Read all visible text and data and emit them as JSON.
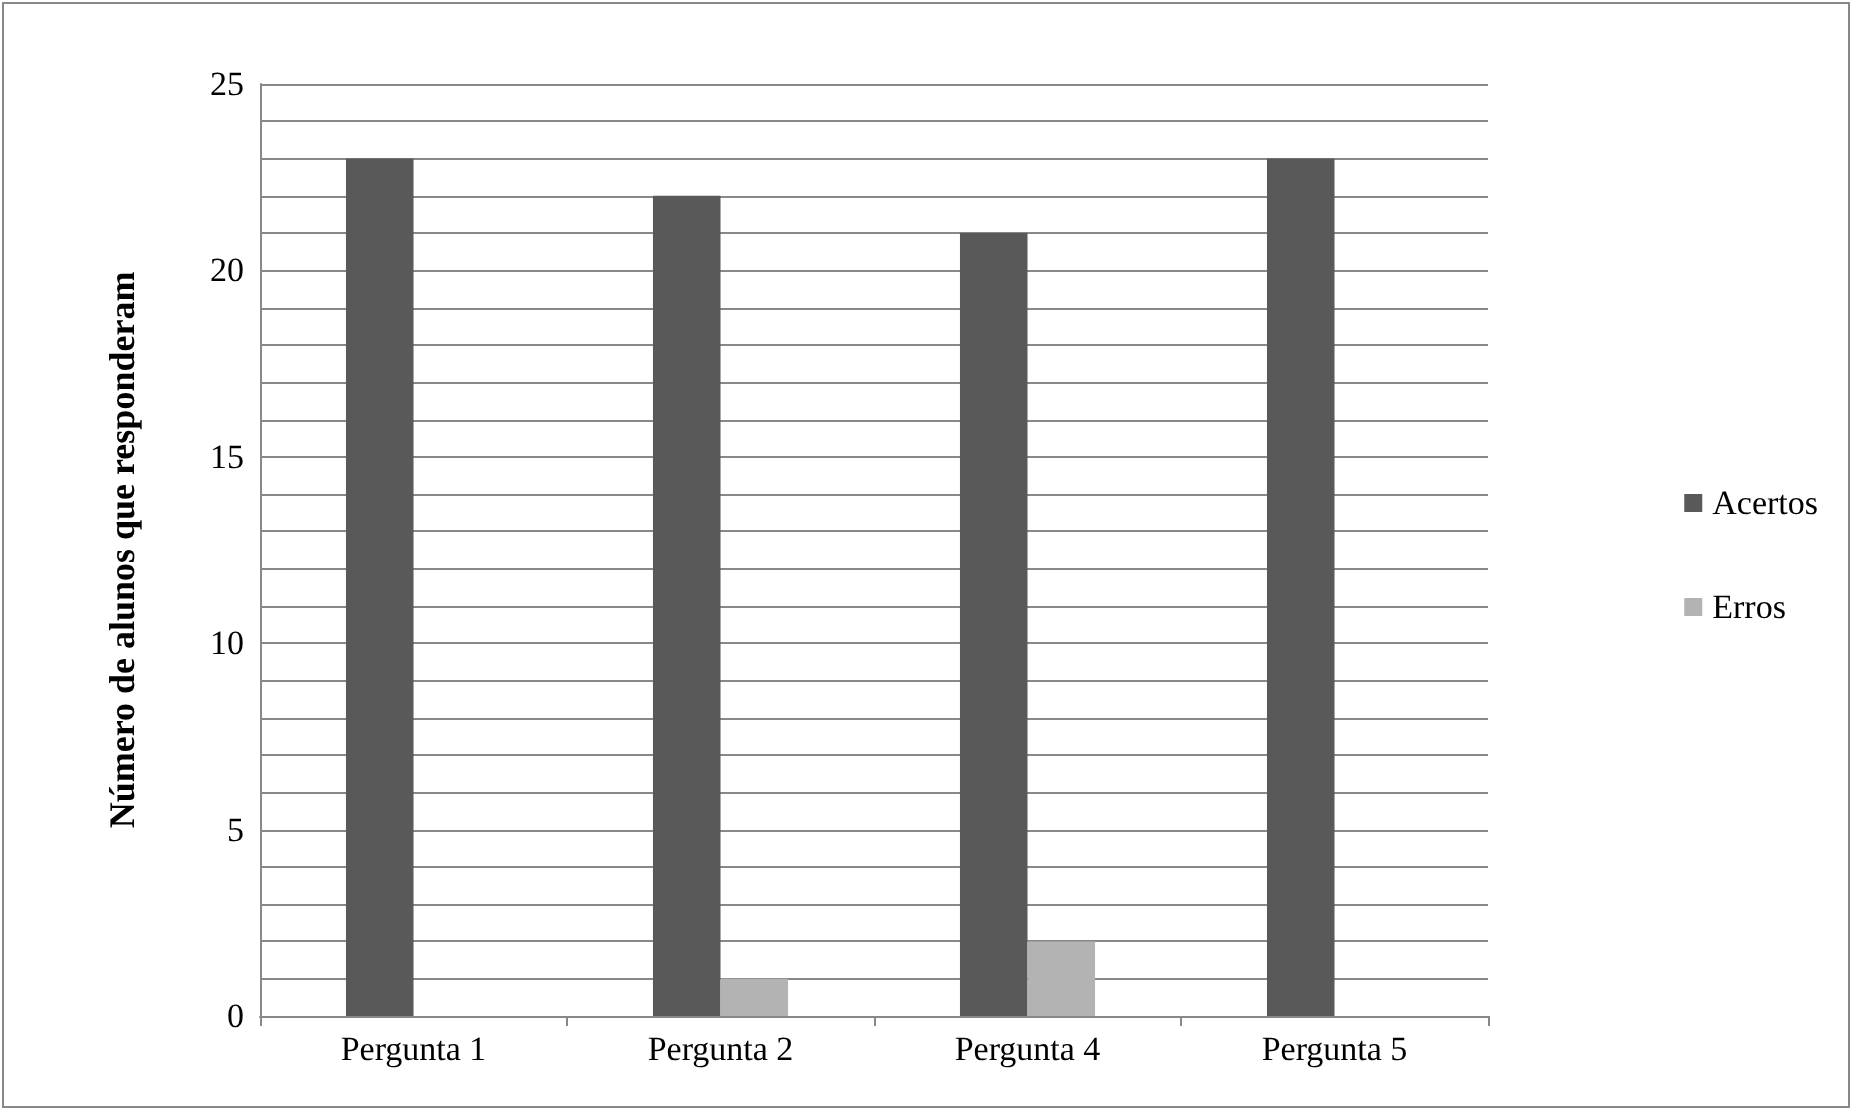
{
  "chart_data": {
    "type": "bar",
    "ylabel": "Número de alunos que responderam",
    "categories": [
      "Pergunta 1",
      "Pergunta 2",
      "Pergunta 4",
      "Pergunta 5"
    ],
    "series": [
      {
        "name": "Acertos",
        "color": "#595959",
        "values": [
          23,
          22,
          21,
          23
        ]
      },
      {
        "name": "Erros",
        "color": "#b3b3b3",
        "values": [
          0,
          1,
          2,
          0
        ]
      }
    ],
    "ylim": [
      0,
      25
    ],
    "yticks": [
      0,
      {
        "value": 1,
        "label": null
      },
      {
        "value": 2,
        "label": null
      },
      {
        "value": 3,
        "label": null
      },
      {
        "value": 4,
        "label": null
      },
      5,
      {
        "value": 6,
        "label": null
      },
      {
        "value": 7,
        "label": null
      },
      {
        "value": 8,
        "label": null
      },
      {
        "value": 9,
        "label": null
      },
      10,
      {
        "value": 11,
        "label": null
      },
      {
        "value": 12,
        "label": null
      },
      {
        "value": 13,
        "label": null
      },
      {
        "value": 14,
        "label": null
      },
      15,
      {
        "value": 16,
        "label": null
      },
      {
        "value": 17,
        "label": null
      },
      {
        "value": 18,
        "label": null
      },
      {
        "value": 19,
        "label": null
      },
      20,
      {
        "value": 21,
        "label": null
      },
      {
        "value": 22,
        "label": null
      },
      {
        "value": 23,
        "label": null
      },
      {
        "value": 24,
        "label": null
      },
      25
    ],
    "grid": "y",
    "legend": "right"
  }
}
